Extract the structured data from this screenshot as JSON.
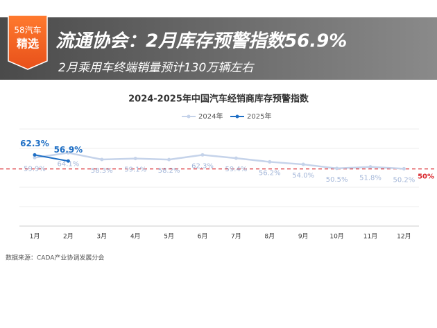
{
  "badge": {
    "line1": "58汽车",
    "line2": "精选"
  },
  "headline": "流通协会：2月库存预警指数56.9%",
  "subheadline": "2月乘用车终端销量预计130万辆左右",
  "source": "数据来源：CADA产业协调发展分会",
  "chart_data": {
    "type": "line",
    "title": "2024-2025年中国汽车经销商库存预警指数",
    "categories": [
      "1月",
      "2月",
      "3月",
      "4月",
      "5月",
      "6月",
      "7月",
      "8月",
      "9月",
      "10月",
      "11月",
      "12月"
    ],
    "series": [
      {
        "name": "2024年",
        "color": "#c5d3ea",
        "label_color": "#a3b6d8",
        "values": [
          59.9,
          64.1,
          58.3,
          59.1,
          58.2,
          62.3,
          59.4,
          56.2,
          54.0,
          50.5,
          51.8,
          50.2
        ],
        "value_labels": [
          "59.9%",
          "64.1%",
          "58.3%",
          "59.1%",
          "58.2%",
          "62.3%",
          "59.4%",
          "56.2%",
          "54.0%",
          "50.5%",
          "51.8%",
          "50.2%"
        ]
      },
      {
        "name": "2025年",
        "color": "#1f6fc5",
        "label_color": "#1f6fc5",
        "values": [
          62.3,
          56.9,
          null,
          null,
          null,
          null,
          null,
          null,
          null,
          null,
          null,
          null
        ],
        "value_labels": [
          "62.3%",
          "56.9%",
          null,
          null,
          null,
          null,
          null,
          null,
          null,
          null,
          null,
          null
        ]
      }
    ],
    "ylim": [
      0,
      85
    ],
    "reference_line": {
      "value": 50,
      "label": "50%",
      "color": "#d9252b"
    }
  }
}
